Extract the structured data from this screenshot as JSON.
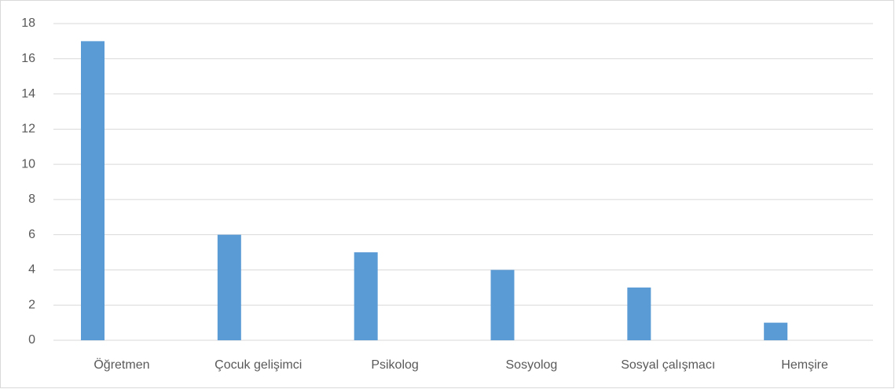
{
  "chart_data": {
    "type": "bar",
    "categories": [
      "Öğretmen",
      "Çocuk gelişimci",
      "Psikolog",
      "Sosyolog",
      "Sosyal çalışmacı",
      "Hemşire"
    ],
    "values": [
      17,
      6,
      5,
      4,
      3,
      1
    ],
    "color": "#5b9bd5",
    "ylim": [
      0,
      18
    ],
    "yticks": [
      0,
      2,
      4,
      6,
      8,
      10,
      12,
      14,
      16,
      18
    ],
    "grid": true
  }
}
